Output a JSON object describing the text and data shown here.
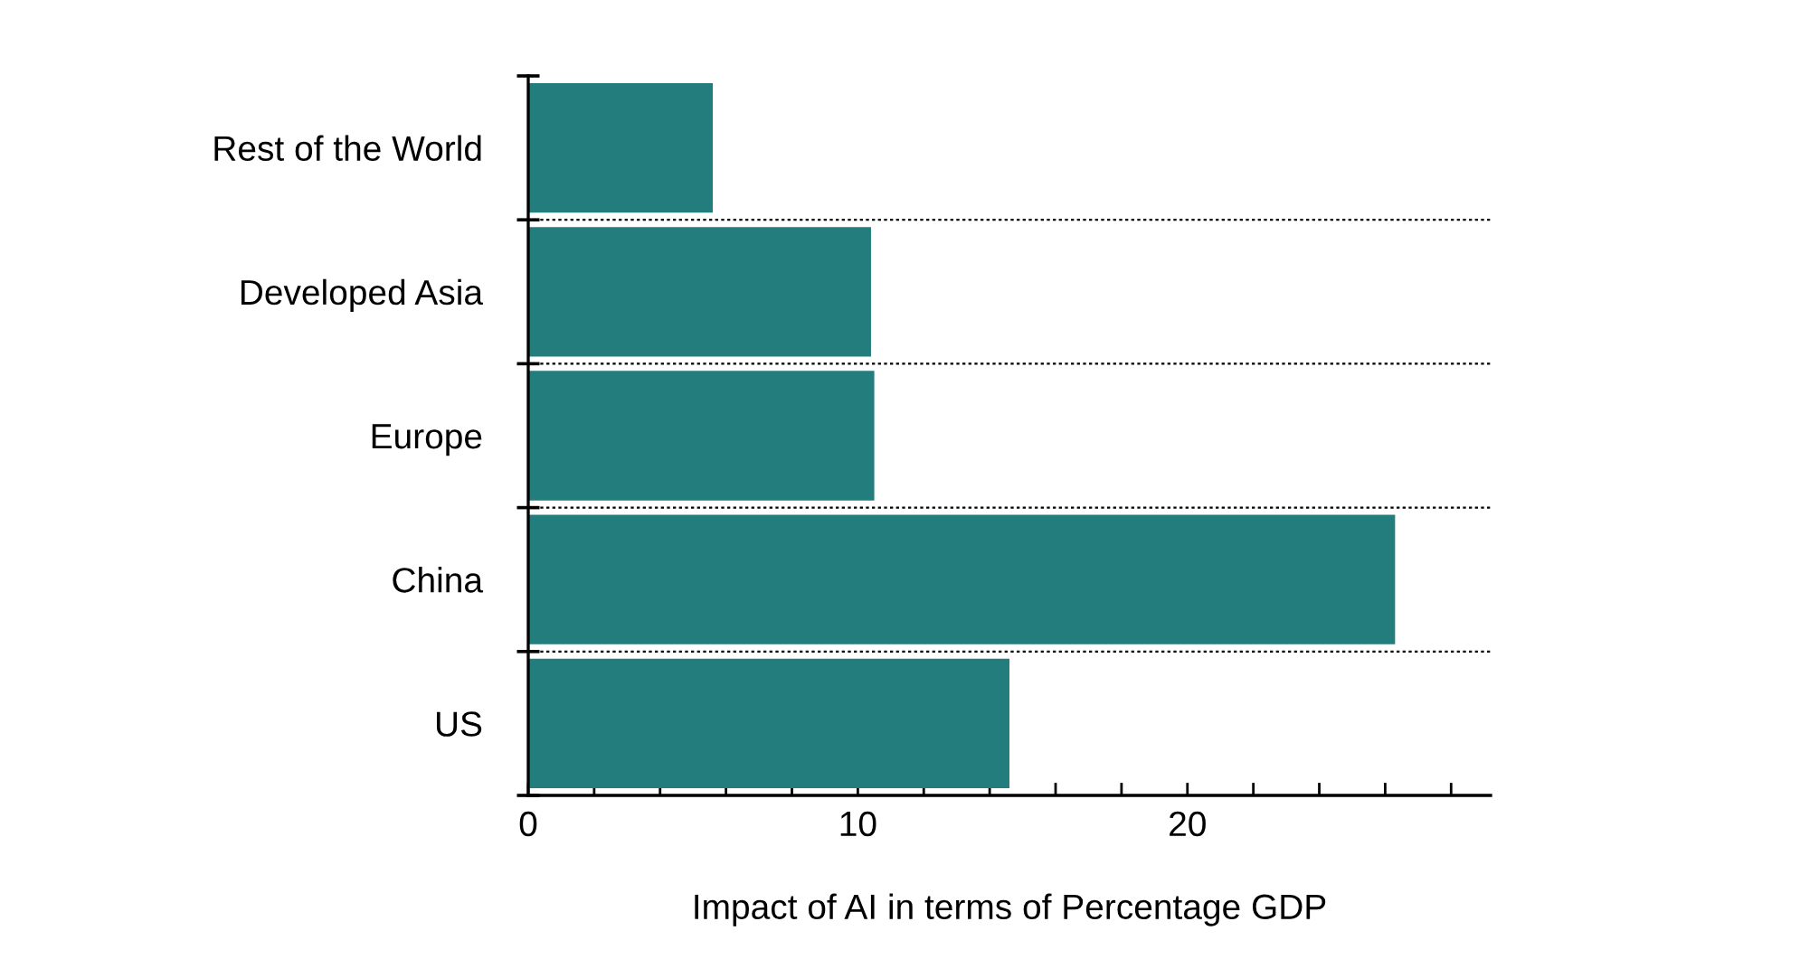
{
  "chart_data": {
    "type": "bar",
    "orientation": "horizontal",
    "xlabel": "Impact of AI in terms of Percentage GDP",
    "categories": [
      "Rest of the World",
      "Developed Asia",
      "Europe",
      "China",
      "US"
    ],
    "values": [
      5.6,
      10.4,
      10.5,
      26.3,
      14.6
    ],
    "color": "#237d7c",
    "xlim": [
      0,
      29.2
    ],
    "xticks": [
      0,
      {
        "value": 2,
        "label": null
      },
      {
        "value": 4,
        "label": null
      },
      {
        "value": 6,
        "label": null
      },
      {
        "value": 8,
        "label": null
      },
      10,
      {
        "value": 12,
        "label": null
      },
      {
        "value": 14,
        "label": null
      },
      {
        "value": 16,
        "label": null
      },
      {
        "value": 18,
        "label": null
      },
      20,
      {
        "value": 22,
        "label": null
      },
      {
        "value": 24,
        "label": null
      },
      {
        "value": 26,
        "label": null
      },
      {
        "value": 28,
        "label": null
      }
    ],
    "grid": "y"
  }
}
